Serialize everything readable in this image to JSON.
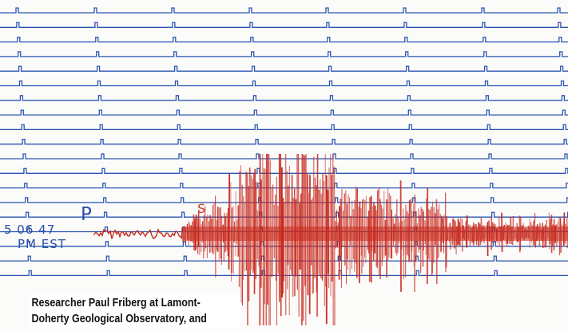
{
  "annotations": {
    "p_wave": "P",
    "s_wave": "S",
    "time": "5 06 47",
    "timezone": "PM EST"
  },
  "caption": {
    "line1": "Researcher Paul Friberg at Lamont-",
    "line2": "Doherty Geological Observatory, and"
  },
  "colors": {
    "trace": "#2a55b0",
    "quake": "#c8281c",
    "ink": "#2a4fa8"
  }
}
